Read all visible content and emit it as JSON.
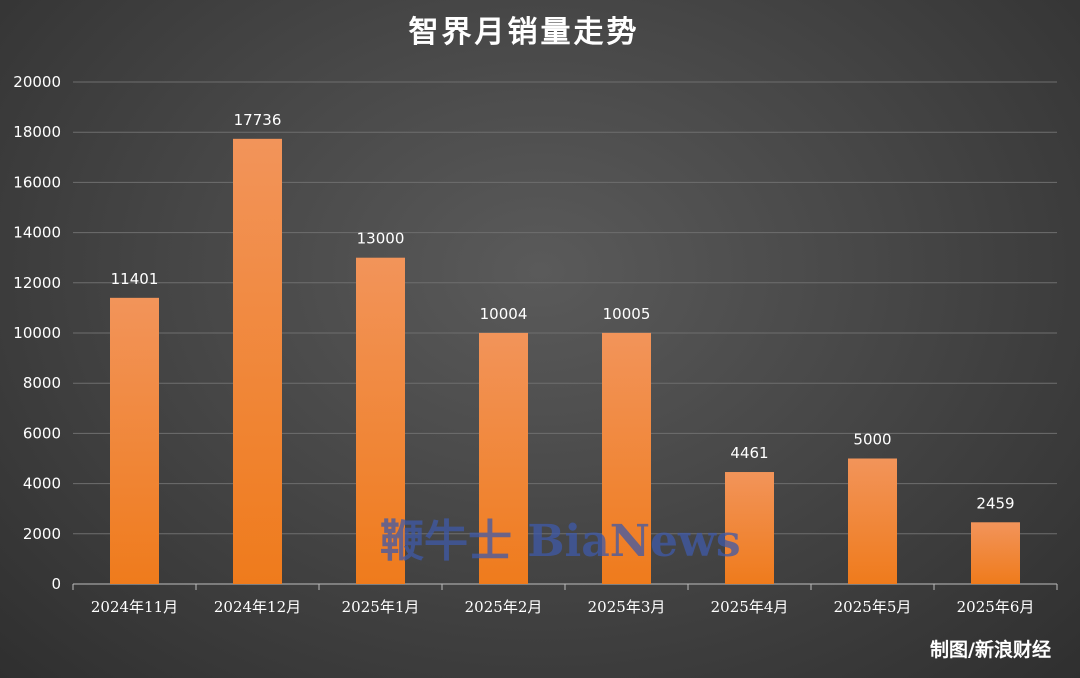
{
  "chart_data": {
    "type": "bar",
    "title": "智界月销量走势",
    "categories": [
      "2024年11月",
      "2024年12月",
      "2025年1月",
      "2025年2月",
      "2025年3月",
      "2025年4月",
      "2025年5月",
      "2025年6月"
    ],
    "values": [
      11401,
      17736,
      13000,
      10004,
      10005,
      4461,
      5000,
      2459
    ],
    "data_labels": [
      "11401",
      "17736",
      "13000",
      "10004",
      "10005",
      "4461",
      "5000",
      "2459"
    ],
    "yticks": [
      "0",
      "2000",
      "4000",
      "6000",
      "8000",
      "10000",
      "12000",
      "14000",
      "16000",
      "18000",
      "20000"
    ],
    "ylim": [
      0,
      20000
    ],
    "grid": true,
    "legend": "none",
    "bar_color_top": "#f2945a",
    "bar_color_bottom": "#ef7b1c"
  },
  "watermark": "鞭牛士 BiaNews",
  "credit": "制图/新浪财经"
}
